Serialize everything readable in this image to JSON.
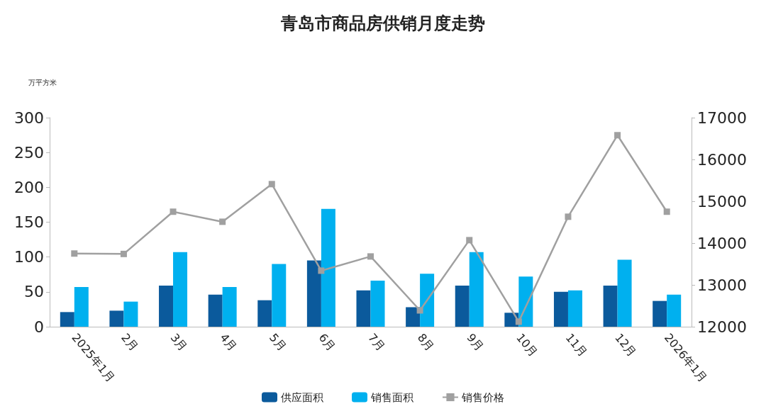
{
  "chart_data": {
    "type": "bar",
    "title": "青岛市商品房供销月度走势",
    "ylabel": "万平方米",
    "categories": [
      "2025年1月",
      "2月",
      "3月",
      "4月",
      "5月",
      "6月",
      "7月",
      "8月",
      "9月",
      "10月",
      "11月",
      "12月",
      "2026年1月"
    ],
    "series": [
      {
        "name": "供应面积",
        "color": "#0b5a9c",
        "values": [
          21,
          23,
          59,
          46,
          38,
          95,
          52,
          28,
          59,
          20,
          50,
          59,
          37
        ]
      },
      {
        "name": "销售面积",
        "color": "#00b0ef",
        "values": [
          57,
          36,
          107,
          57,
          90,
          169,
          66,
          76,
          107,
          72,
          52,
          96,
          46
        ]
      },
      {
        "name": "销售价格",
        "type": "line",
        "axis": "y2",
        "color": "#a0a0a0",
        "marker": "square",
        "values": [
          13750,
          13740,
          14750,
          14510,
          15410,
          13340,
          13680,
          12390,
          14070,
          12120,
          14630,
          16580,
          14750
        ]
      }
    ],
    "ylim": [
      0,
      300
    ],
    "yticks": [
      0,
      50,
      100,
      150,
      200,
      250,
      300
    ],
    "y2lim": [
      12000,
      17000
    ],
    "y2ticks": [
      12000,
      13000,
      14000,
      15000,
      16000,
      17000
    ],
    "grid": false,
    "legend": "bottom"
  }
}
